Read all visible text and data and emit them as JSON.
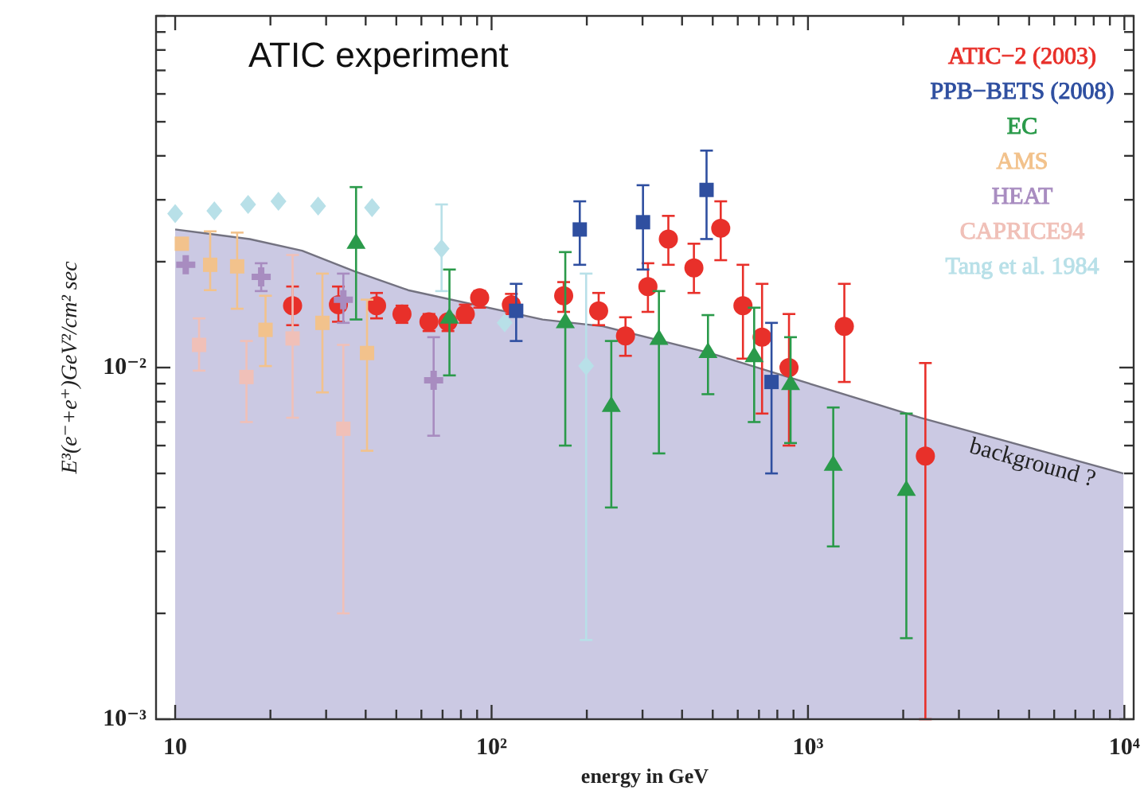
{
  "chart_data": {
    "type": "scatter",
    "title": "ATIC experiment",
    "xlabel": "energy in GeV",
    "ylabel": "E³(e⁻+e⁺)GeV²/cm² sec",
    "log": "xy",
    "grid": false,
    "legend": "top right",
    "xlim": [
      8.7,
      10700
    ],
    "ylim": [
      0.001,
      0.1
    ],
    "xticks": [
      {
        "value": 10,
        "label": "10"
      },
      {
        "value": 20,
        "label": null
      },
      {
        "value": 30,
        "label": null
      },
      {
        "value": 40,
        "label": null
      },
      {
        "value": 50,
        "label": null
      },
      {
        "value": 60,
        "label": null
      },
      {
        "value": 70,
        "label": null
      },
      {
        "value": 80,
        "label": null
      },
      {
        "value": 90,
        "label": null
      },
      {
        "value": 100,
        "label": "10²"
      },
      {
        "value": 200,
        "label": null
      },
      {
        "value": 300,
        "label": null
      },
      {
        "value": 400,
        "label": null
      },
      {
        "value": 500,
        "label": null
      },
      {
        "value": 600,
        "label": null
      },
      {
        "value": 700,
        "label": null
      },
      {
        "value": 800,
        "label": null
      },
      {
        "value": 900,
        "label": null
      },
      {
        "value": 1000,
        "label": "10³"
      },
      {
        "value": 2000,
        "label": null
      },
      {
        "value": 3000,
        "label": null
      },
      {
        "value": 4000,
        "label": null
      },
      {
        "value": 5000,
        "label": null
      },
      {
        "value": 6000,
        "label": null
      },
      {
        "value": 7000,
        "label": null
      },
      {
        "value": 8000,
        "label": null
      },
      {
        "value": 9000,
        "label": null
      },
      {
        "value": 10000,
        "label": "10⁴"
      }
    ],
    "yticks": [
      {
        "value": 0.001,
        "label": "10⁻³"
      },
      {
        "value": 0.002,
        "label": null
      },
      {
        "value": 0.003,
        "label": null
      },
      {
        "value": 0.004,
        "label": null
      },
      {
        "value": 0.005,
        "label": null
      },
      {
        "value": 0.006,
        "label": null
      },
      {
        "value": 0.007,
        "label": null
      },
      {
        "value": 0.008,
        "label": null
      },
      {
        "value": 0.009,
        "label": null
      },
      {
        "value": 0.01,
        "label": "10⁻²"
      },
      {
        "value": 0.02,
        "label": null
      },
      {
        "value": 0.03,
        "label": null
      },
      {
        "value": 0.04,
        "label": null
      },
      {
        "value": 0.05,
        "label": null
      },
      {
        "value": 0.06,
        "label": null
      },
      {
        "value": 0.07,
        "label": null
      },
      {
        "value": 0.08,
        "label": null
      },
      {
        "value": 0.09,
        "label": null
      },
      {
        "value": 0.1,
        "label": null
      }
    ],
    "annotations": [
      "background ?"
    ],
    "series": [
      {
        "type": "area",
        "color": "#cbc9e3",
        "x": [
          10,
          17.2,
          25.2,
          36.8,
          54.5,
          145,
          225,
          489,
          2270,
          9930
        ],
        "values": [
          0.0247,
          0.0232,
          0.0215,
          0.0188,
          0.0166,
          0.0137,
          0.0131,
          0.011,
          0.0072,
          0.005
        ]
      },
      {
        "name": "ATIC−2 (2003)",
        "color": "#e8302a",
        "marker": "circle",
        "x": [
          23.5,
          32.8,
          43.3,
          52.1,
          63.4,
          72.8,
          82.6,
          91.7,
          115.5,
          169,
          218,
          265,
          312,
          362,
          436,
          530,
          623,
          716,
          871,
          1303,
          2350
        ],
        "values": [
          0.015,
          0.0151,
          0.015,
          0.0142,
          0.0135,
          0.0135,
          0.0142,
          0.0158,
          0.0151,
          0.016,
          0.0145,
          0.0123,
          0.017,
          0.0232,
          0.0192,
          0.0249,
          0.015,
          0.0122,
          0.01,
          0.0131,
          0.0056
        ],
        "errors": [
          [
            0.0132,
            0.017
          ],
          [
            0.0135,
            0.017
          ],
          [
            0.0138,
            0.0163
          ],
          [
            0.0134,
            0.015
          ],
          [
            0.0127,
            0.0142
          ],
          [
            0.0127,
            0.014
          ],
          [
            0.0134,
            0.0151
          ],
          [
            0.0148,
            0.0165
          ],
          [
            0.0142,
            0.0162
          ],
          [
            0.0144,
            0.0175
          ],
          [
            0.0132,
            0.0163
          ],
          [
            0.0108,
            0.0139
          ],
          [
            0.0144,
            0.0198
          ],
          [
            0.0196,
            0.027
          ],
          [
            0.0163,
            0.0225
          ],
          [
            0.0202,
            0.0297
          ],
          [
            0.0106,
            0.0196
          ],
          [
            0.0074,
            0.0173
          ],
          [
            0.006,
            0.0142
          ],
          [
            0.0091,
            0.0173
          ],
          [
            0.001,
            0.0103
          ]
        ]
      },
      {
        "name": "PPB−BETS (2008)",
        "color": "#2f4fa0",
        "marker": "square",
        "x": [
          119.6,
          190,
          301,
          478,
          767
        ],
        "values": [
          0.0145,
          0.0247,
          0.0259,
          0.032,
          0.0091
        ],
        "errors": [
          [
            0.0119,
            0.0173
          ],
          [
            0.0196,
            0.0297
          ],
          [
            0.019,
            0.033
          ],
          [
            0.0232,
            0.0414
          ],
          [
            0.005,
            0.0134
          ]
        ]
      },
      {
        "name": "EC",
        "color": "#2a9a4a",
        "marker": "triangle",
        "x": [
          37.3,
          73.6,
          171,
          239,
          338,
          483,
          676,
          881,
          1202,
          2046
        ],
        "values": [
          0.0227,
          0.0139,
          0.0135,
          0.0078,
          0.0121,
          0.0111,
          0.0108,
          0.009,
          0.0053,
          0.0045
        ],
        "errors": [
          [
            0.0137,
            0.0326
          ],
          [
            0.0095,
            0.019
          ],
          [
            0.006,
            0.0213
          ],
          [
            0.004,
            0.0119
          ],
          [
            0.0057,
            0.0165
          ],
          [
            0.0084,
            0.0141
          ],
          [
            0.007,
            0.0148
          ],
          [
            0.0061,
            0.0122
          ],
          [
            0.0031,
            0.0077
          ],
          [
            0.0017,
            0.0074
          ]
        ]
      },
      {
        "name": "AMS",
        "color": "#f2c28c",
        "marker": "square",
        "x": [
          10.5,
          12.9,
          15.7,
          19.3,
          29.2,
          40.4
        ],
        "values": [
          0.0225,
          0.0196,
          0.0194,
          0.0128,
          0.0134,
          0.011
        ],
        "errors": [
          null,
          [
            0.0166,
            0.0244
          ],
          [
            0.0147,
            0.0242
          ],
          [
            0.0101,
            0.016
          ],
          [
            0.0085,
            0.0185
          ],
          [
            0.0058,
            0.0156
          ]
        ]
      },
      {
        "name": "HEAT",
        "color": "#a88cc0",
        "marker": "cross",
        "x": [
          10.8,
          18.7,
          34,
          65.6
        ],
        "values": [
          0.0196,
          0.0181,
          0.0156,
          0.0092
        ],
        "errors": [
          null,
          [
            0.0165,
            0.0198
          ],
          [
            0.0134,
            0.0185
          ],
          [
            0.0064,
            0.0122
          ]
        ]
      },
      {
        "name": "CAPRICE94",
        "color": "#f0c0b8",
        "marker": "square",
        "x": [
          11.9,
          16.8,
          23.5,
          34
        ],
        "values": [
          0.0116,
          0.0094,
          0.0121,
          0.0067
        ],
        "errors": [
          [
            0.0098,
            0.0138
          ],
          [
            0.007,
            0.0119
          ],
          [
            0.0072,
            0.0209
          ],
          [
            0.002,
            0.0116
          ]
        ]
      },
      {
        "name": "Tang et al. 1984",
        "color": "#b8e0e8",
        "marker": "diamond",
        "x": [
          10,
          13.3,
          17,
          21.2,
          28.3,
          41.9,
          69.5,
          110,
          199
        ],
        "values": [
          0.0274,
          0.0279,
          0.0291,
          0.0297,
          0.0288,
          0.0285,
          0.0218,
          0.0134,
          0.0101
        ],
        "errors": [
          null,
          null,
          null,
          null,
          null,
          null,
          [
            0.0165,
            0.0291
          ],
          null,
          [
            0.00168,
            0.0185
          ]
        ]
      }
    ]
  }
}
